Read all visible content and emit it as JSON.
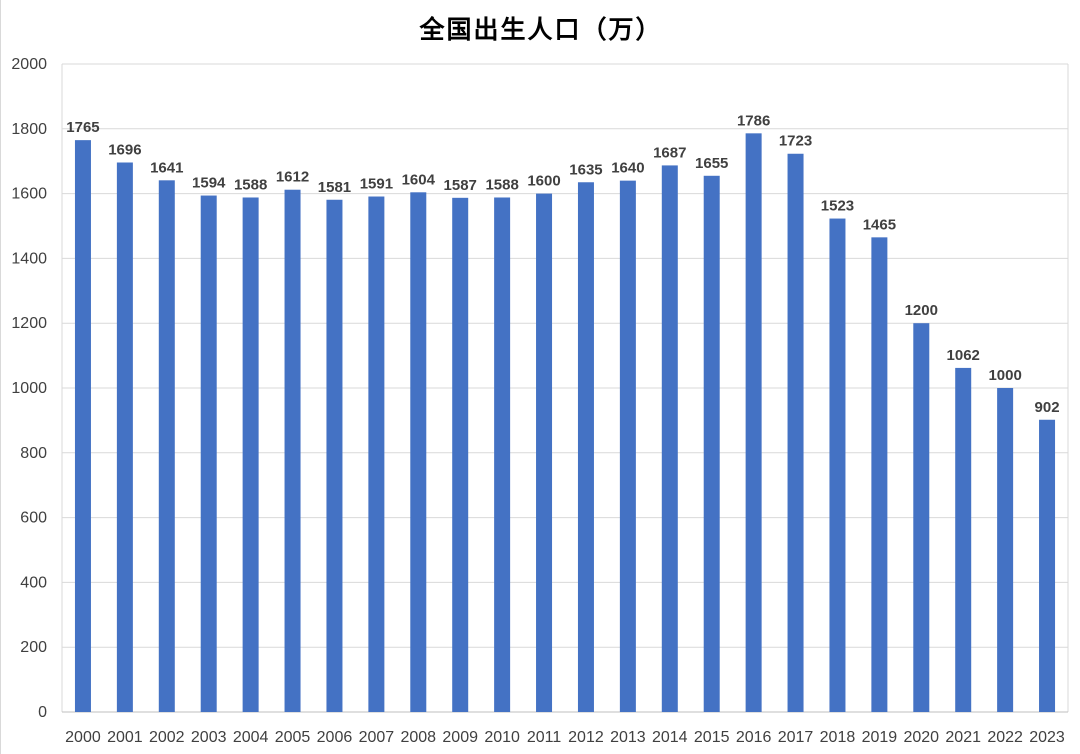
{
  "chart_data": {
    "type": "bar",
    "title": "全国出生人口（万）",
    "xlabel": "",
    "ylabel": "",
    "ylim": [
      0,
      2000
    ],
    "yticks": [
      0,
      200,
      400,
      600,
      800,
      1000,
      1200,
      1400,
      1600,
      1800,
      2000
    ],
    "grid": true,
    "legend": "none",
    "bar_color": "#4472c4",
    "categories": [
      "2000",
      "2001",
      "2002",
      "2003",
      "2004",
      "2005",
      "2006",
      "2007",
      "2008",
      "2009",
      "2010",
      "2011",
      "2012",
      "2013",
      "2014",
      "2015",
      "2016",
      "2017",
      "2018",
      "2019",
      "2020",
      "2021",
      "2022",
      "2023"
    ],
    "values": [
      1765,
      1696,
      1641,
      1594,
      1588,
      1612,
      1581,
      1591,
      1604,
      1587,
      1588,
      1600,
      1635,
      1640,
      1687,
      1655,
      1786,
      1723,
      1523,
      1465,
      1200,
      1062,
      1000,
      902
    ]
  }
}
